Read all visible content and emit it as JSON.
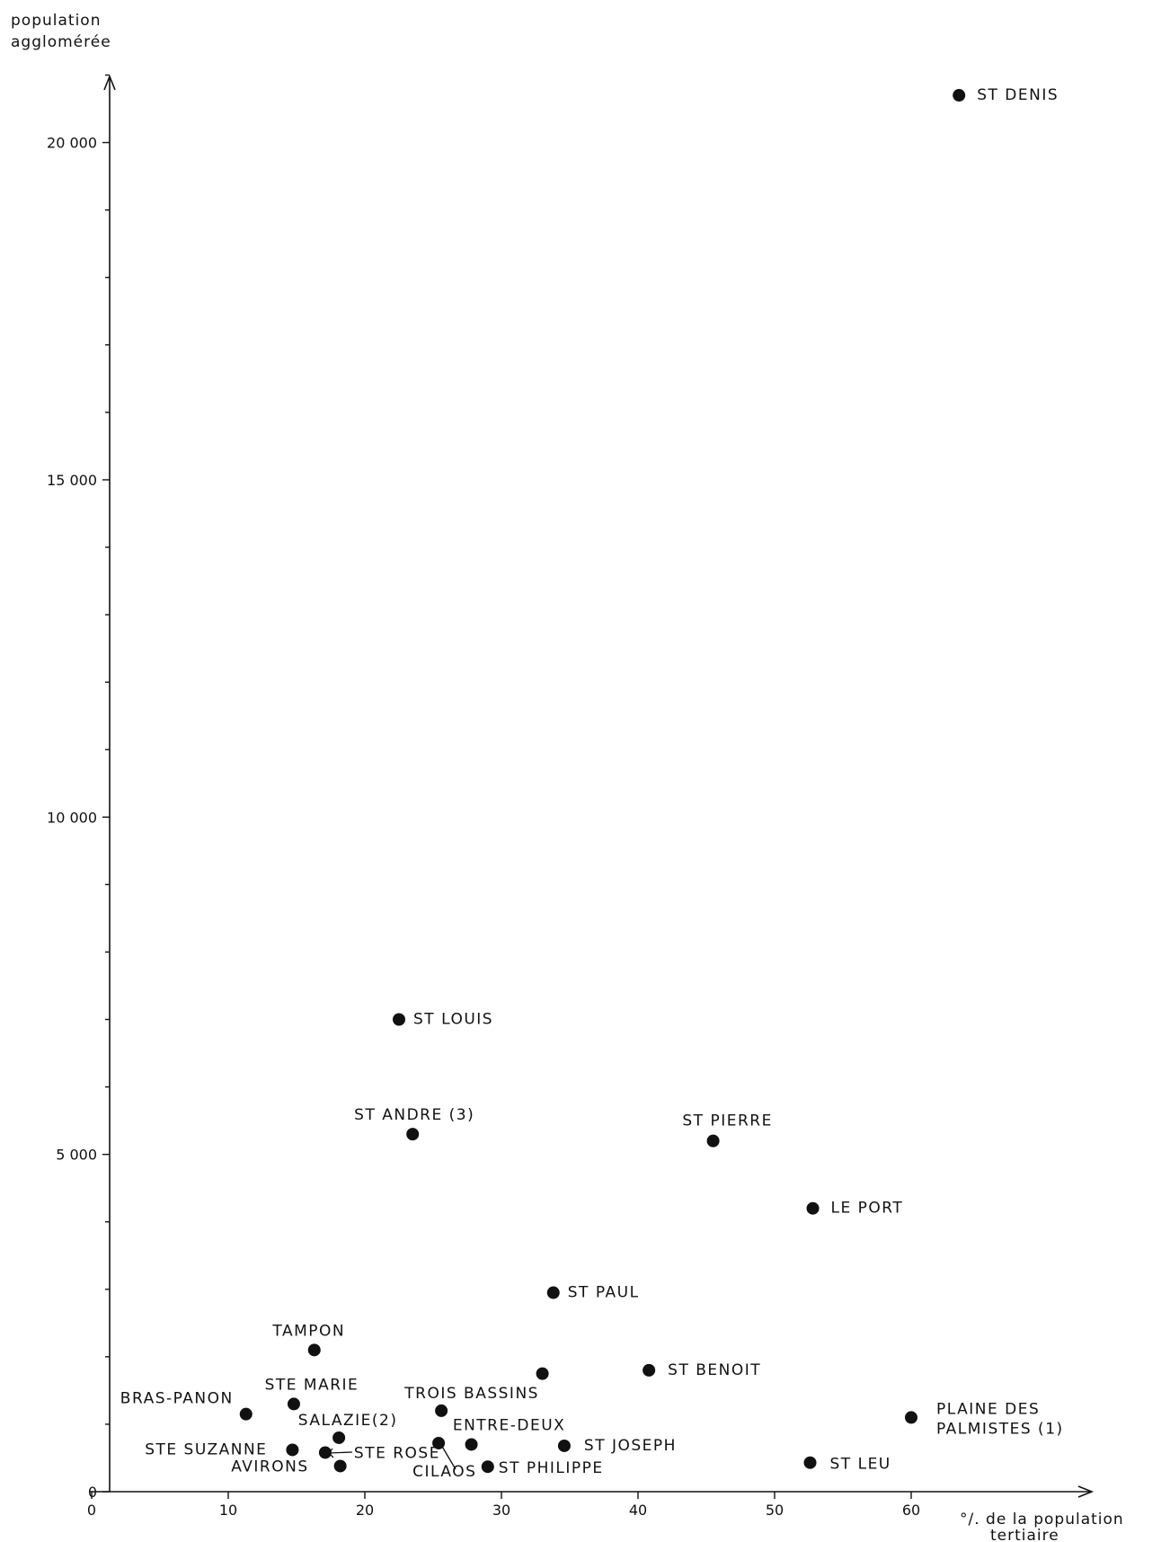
{
  "chart_data": {
    "type": "scatter",
    "title": "",
    "ylabel_lines": [
      "population",
      "agglomérée"
    ],
    "xlabel_lines": [
      "°/. de la population",
      "tertiaire"
    ],
    "xlim": [
      0,
      72
    ],
    "ylim": [
      0,
      22000
    ],
    "x_ticks": [
      0,
      10,
      20,
      30,
      40,
      50,
      60
    ],
    "y_labeled_ticks": [
      0,
      5000,
      10000,
      15000,
      20000
    ],
    "y_tick_labels": [
      "0",
      "5 000",
      "10 000",
      "15 000",
      "20 000"
    ],
    "y_minor_ticks": [
      1000,
      2000,
      3000,
      4000,
      6000,
      7000,
      8000,
      9000,
      11000,
      12000,
      13000,
      14000,
      16000,
      17000,
      18000,
      19000,
      21000
    ],
    "grid": false,
    "points": [
      {
        "label": "ST DENIS",
        "x": 63.5,
        "y": 20700
      },
      {
        "label": "ST LOUIS",
        "x": 22.5,
        "y": 7000
      },
      {
        "label": "ST ANDRE (3)",
        "x": 23.5,
        "y": 5300
      },
      {
        "label": "ST PIERRE",
        "x": 45.5,
        "y": 5200
      },
      {
        "label": "LE PORT",
        "x": 52.8,
        "y": 4200
      },
      {
        "label": "ST PAUL",
        "x": 33.8,
        "y": 2950
      },
      {
        "label": "TAMPON",
        "x": 16.3,
        "y": 2100
      },
      {
        "label": "ST BENOIT",
        "x": 40.8,
        "y": 1800
      },
      {
        "label": "",
        "x": 33.0,
        "y": 1750
      },
      {
        "label": "BRAS-PANON",
        "x": 11.3,
        "y": 1150
      },
      {
        "label": "STE MARIE",
        "x": 14.8,
        "y": 1300
      },
      {
        "label": "TROIS BASSINS",
        "x": 25.6,
        "y": 1200
      },
      {
        "label": "PLAINE DES PALMISTES (1)",
        "x": 60.0,
        "y": 1100
      },
      {
        "label": "SALAZIE(2)",
        "x": 18.1,
        "y": 800
      },
      {
        "label": "ENTRE-DEUX",
        "x": 27.8,
        "y": 700
      },
      {
        "label": "",
        "x": 25.4,
        "y": 720
      },
      {
        "label": "ST JOSEPH",
        "x": 34.6,
        "y": 680
      },
      {
        "label": "STE SUZANNE",
        "x": 14.7,
        "y": 620
      },
      {
        "label": "STE ROSE",
        "x": 17.1,
        "y": 580
      },
      {
        "label": "AVIRONS",
        "x": 18.2,
        "y": 380
      },
      {
        "label": "CILAOS",
        "x": 29.0,
        "y": 370
      },
      {
        "label": "ST PHILIPPE",
        "x": 29.0,
        "y": 370
      },
      {
        "label": "ST LEU",
        "x": 52.6,
        "y": 430
      }
    ]
  }
}
